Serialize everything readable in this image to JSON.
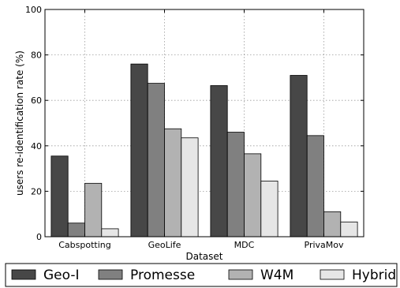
{
  "chart_data": {
    "type": "bar",
    "title": "",
    "xlabel": "Dataset",
    "ylabel": "users re-identification rate (%)",
    "categories": [
      "Cabspotting",
      "GeoLife",
      "MDC",
      "PrivaMov"
    ],
    "ylim": [
      0,
      100
    ],
    "yticks": [
      "0",
      "20",
      "40",
      "60",
      "80",
      "100"
    ],
    "grid": true,
    "legend_placement": "bottom",
    "series": [
      {
        "name": "Geo-I",
        "color": "#474747",
        "values": [
          35.5,
          76,
          66.5,
          71
        ]
      },
      {
        "name": "Promesse",
        "color": "#808080",
        "values": [
          6,
          67.5,
          46,
          44.5
        ]
      },
      {
        "name": "W4M",
        "color": "#b2b2b2",
        "values": [
          23.5,
          47.5,
          36.5,
          11
        ]
      },
      {
        "name": "Hybrid",
        "color": "#e6e6e6",
        "values": [
          3.5,
          43.5,
          24.5,
          6.5
        ]
      }
    ]
  }
}
